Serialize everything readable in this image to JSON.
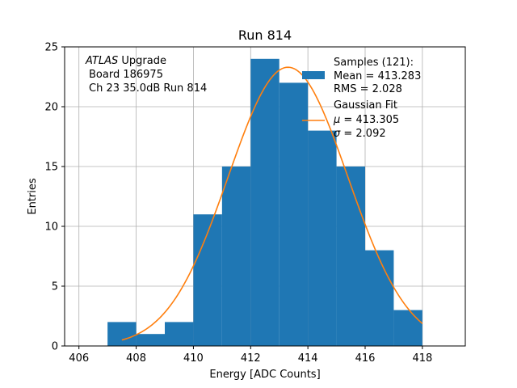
{
  "chart_data": {
    "type": "histogram",
    "title": "Run 814",
    "xlabel": "Energy [ADC Counts]",
    "ylabel": "Entries",
    "xlim": [
      405.5,
      419.5
    ],
    "ylim": [
      0,
      25
    ],
    "xticks": [
      406,
      408,
      410,
      412,
      414,
      416,
      418
    ],
    "yticks": [
      0,
      5,
      10,
      15,
      20,
      25
    ],
    "grid": true,
    "bin_edges": [
      407,
      408,
      409,
      410,
      411,
      412,
      413,
      414,
      415,
      416,
      417,
      418
    ],
    "counts": [
      2,
      1,
      2,
      11,
      15,
      24,
      22,
      18,
      15,
      8,
      3
    ],
    "bar_color": "#1f77b4",
    "fit": {
      "name": "Gaussian Fit",
      "mu": 413.305,
      "sigma": 2.092,
      "amplitude": 23.3,
      "x_range": [
        407.5,
        418.0
      ],
      "color": "#ff7f0e"
    },
    "annotation": {
      "line1_italic": "ATLAS",
      "line1_rest": " Upgrade",
      "line2": "Board 186975",
      "line3": "Ch 23 35.0dB  Run 814"
    },
    "legend": {
      "position": "top-right",
      "samples": {
        "line1": "Samples (121):",
        "line2": "Mean = 413.283",
        "line3": "RMS = 2.028"
      },
      "gauss": {
        "line1": "Gaussian Fit",
        "mu_symbol": "μ",
        "mu_text": " = 413.305",
        "sigma_symbol": "σ",
        "sigma_text": " = 2.092"
      }
    }
  }
}
